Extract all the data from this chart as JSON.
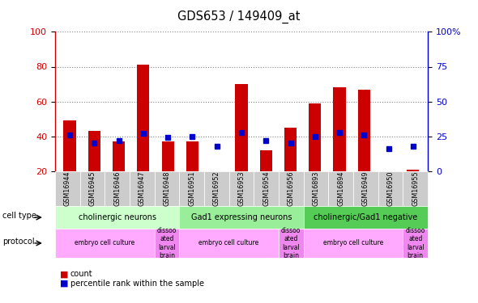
{
  "title": "GDS653 / 149409_at",
  "samples": [
    "GSM16944",
    "GSM16945",
    "GSM16946",
    "GSM16947",
    "GSM16948",
    "GSM16951",
    "GSM16952",
    "GSM16953",
    "GSM16954",
    "GSM16956",
    "GSM16893",
    "GSM16894",
    "GSM16949",
    "GSM16950",
    "GSM16955"
  ],
  "count_values": [
    49,
    43,
    37,
    81,
    37,
    37,
    20,
    70,
    32,
    45,
    59,
    68,
    67,
    20,
    21
  ],
  "percentile_values": [
    26,
    20,
    22,
    27,
    24,
    25,
    18,
    28,
    22,
    20,
    25,
    28,
    26,
    16,
    18
  ],
  "ylim_left": [
    20,
    100
  ],
  "ylim_right": [
    0,
    100
  ],
  "yticks_left": [
    20,
    40,
    60,
    80,
    100
  ],
  "yticks_right": [
    0,
    25,
    50,
    75,
    100
  ],
  "ytick_right_labels": [
    "0",
    "25",
    "50",
    "75",
    "100%"
  ],
  "cell_type_groups": [
    {
      "label": "cholinergic neurons",
      "start": 0,
      "end": 5,
      "color": "#ccffcc"
    },
    {
      "label": "Gad1 expressing neurons",
      "start": 5,
      "end": 10,
      "color": "#99ee99"
    },
    {
      "label": "cholinergic/Gad1 negative",
      "start": 10,
      "end": 15,
      "color": "#55cc55"
    }
  ],
  "protocol_groups": [
    {
      "label": "embryo cell culture",
      "start": 0,
      "end": 4,
      "color": "#ffaaff"
    },
    {
      "label": "dissoo\nated\nlarval\nbrain",
      "start": 4,
      "end": 5,
      "color": "#ee88ee"
    },
    {
      "label": "embryo cell culture",
      "start": 5,
      "end": 9,
      "color": "#ffaaff"
    },
    {
      "label": "dissoo\nated\nlarval\nbrain",
      "start": 9,
      "end": 10,
      "color": "#ee88ee"
    },
    {
      "label": "embryo cell culture",
      "start": 10,
      "end": 14,
      "color": "#ffaaff"
    },
    {
      "label": "dissoo\nated\nlarval\nbrain",
      "start": 14,
      "end": 15,
      "color": "#ee88ee"
    }
  ],
  "bar_color": "#cc0000",
  "dot_color": "#0000cc",
  "bar_width": 0.5,
  "dot_size": 18,
  "grid_color": "#888888",
  "axis_color_left": "#cc0000",
  "axis_color_right": "#0000cc"
}
